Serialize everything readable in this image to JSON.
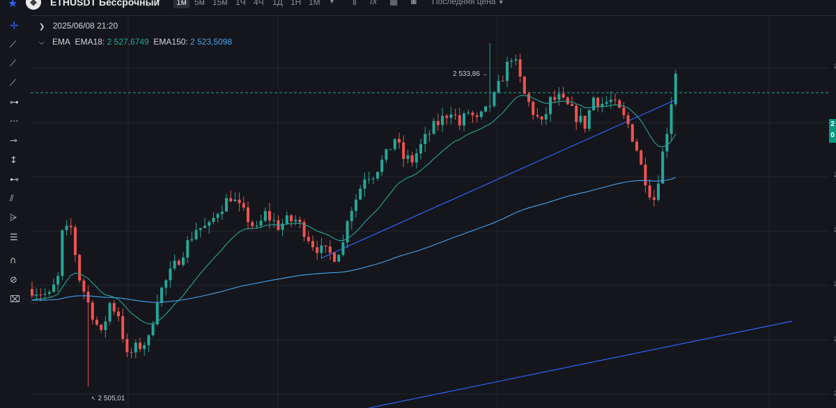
{
  "header": {
    "symbol": "ETHUSDT Бессрочный",
    "favorite_icon": "star-icon",
    "coin_icon": "ethereum-icon",
    "timeframes": [
      "1м",
      "5м",
      "15м",
      "1Ч",
      "4Ч",
      "1Д",
      "1Н",
      "1М"
    ],
    "active_timeframe": "1м",
    "price_type": "Последняя цена"
  },
  "legend": {
    "datetime": "2025/06/08 21:20",
    "indicator": "EMA",
    "ema18_label": "EMA18:",
    "ema18_value": "2 527,6749",
    "ema150_label": "EMA150:",
    "ema150_value": "2 523,5098"
  },
  "annotations": {
    "high": "2 533,86",
    "low": "2 505,01"
  },
  "price_tag": {
    "line1": "2",
    "line2": "0"
  },
  "axis_fragments": [
    "2",
    "2",
    "2",
    "2",
    "2",
    "2"
  ],
  "colors": {
    "up": "#26a69a",
    "down": "#ef5350",
    "ema18": "#26a69a",
    "ema150": "#42a5f5",
    "trendline": "#2962ff"
  },
  "chart_data": {
    "type": "candlestick",
    "ylim": [
      2503.2,
      2536.2
    ],
    "candle_count": 150,
    "anchors": [
      {
        "i": 0,
        "close": 2513.2
      },
      {
        "i": 4,
        "close": 2512.6
      },
      {
        "i": 6,
        "close": 2514.1
      },
      {
        "i": 7,
        "close": 2517.8
      },
      {
        "i": 9,
        "close": 2518.3
      },
      {
        "i": 11,
        "close": 2514.1
      },
      {
        "i": 13,
        "close": 2512.0
      },
      {
        "i": 16,
        "close": 2509.3
      },
      {
        "i": 18,
        "close": 2512.0
      },
      {
        "i": 20,
        "close": 2511.1
      },
      {
        "i": 22,
        "close": 2507.5
      },
      {
        "i": 24,
        "close": 2508.2
      },
      {
        "i": 27,
        "close": 2508.9
      },
      {
        "i": 29,
        "close": 2512.5
      },
      {
        "i": 32,
        "close": 2514.5
      },
      {
        "i": 35,
        "close": 2516.4
      },
      {
        "i": 38,
        "close": 2518.3
      },
      {
        "i": 41,
        "close": 2518.4
      },
      {
        "i": 43,
        "close": 2519.8
      },
      {
        "i": 46,
        "close": 2521.0
      },
      {
        "i": 48,
        "close": 2520.0
      },
      {
        "i": 50,
        "close": 2519.1
      },
      {
        "i": 52,
        "close": 2518.1
      },
      {
        "i": 54,
        "close": 2519.5
      },
      {
        "i": 57,
        "close": 2518.5
      },
      {
        "i": 59,
        "close": 2518.9
      },
      {
        "i": 61,
        "close": 2519.0
      },
      {
        "i": 63,
        "close": 2518.1
      },
      {
        "i": 65,
        "close": 2517.0
      },
      {
        "i": 67,
        "close": 2516.4
      },
      {
        "i": 70,
        "close": 2516.0
      },
      {
        "i": 72,
        "close": 2517.0
      },
      {
        "i": 73,
        "close": 2519.3
      },
      {
        "i": 75,
        "close": 2520.8
      },
      {
        "i": 77,
        "close": 2522.7
      },
      {
        "i": 79,
        "close": 2522.9
      },
      {
        "i": 82,
        "close": 2524.4
      },
      {
        "i": 84,
        "close": 2525.9
      },
      {
        "i": 86,
        "close": 2524.2
      },
      {
        "i": 88,
        "close": 2524.0
      },
      {
        "i": 91,
        "close": 2525.8
      },
      {
        "i": 93,
        "close": 2526.8
      },
      {
        "i": 95,
        "close": 2527.5
      },
      {
        "i": 97,
        "close": 2528.3
      },
      {
        "i": 99,
        "close": 2527.0
      },
      {
        "i": 101,
        "close": 2528.1
      },
      {
        "i": 103,
        "close": 2527.3
      },
      {
        "i": 105,
        "close": 2528.1
      },
      {
        "i": 107,
        "close": 2529.3
      },
      {
        "i": 109,
        "close": 2531.1
      },
      {
        "i": 111,
        "close": 2532.8
      },
      {
        "i": 112,
        "close": 2532.0
      },
      {
        "i": 114,
        "close": 2529.5
      },
      {
        "i": 116,
        "close": 2528.1
      },
      {
        "i": 118,
        "close": 2527.0
      },
      {
        "i": 120,
        "close": 2529.0
      },
      {
        "i": 122,
        "close": 2529.2
      },
      {
        "i": 124,
        "close": 2528.5
      },
      {
        "i": 126,
        "close": 2527.7
      },
      {
        "i": 128,
        "close": 2527.0
      },
      {
        "i": 130,
        "close": 2529.3
      },
      {
        "i": 132,
        "close": 2528.8
      },
      {
        "i": 134,
        "close": 2529.0
      },
      {
        "i": 136,
        "close": 2528.1
      },
      {
        "i": 138,
        "close": 2527.0
      },
      {
        "i": 140,
        "close": 2525.0
      },
      {
        "i": 141,
        "close": 2523.5
      },
      {
        "i": 143,
        "close": 2521.4
      },
      {
        "i": 144,
        "close": 2520.8
      },
      {
        "i": 145,
        "close": 2522.6
      },
      {
        "i": 147,
        "close": 2526.6
      },
      {
        "i": 148,
        "close": 2529.0
      },
      {
        "i": 149,
        "close": 2531.5
      },
      {
        "i": 150,
        "close": 2531.2
      },
      {
        "i": 151,
        "close": 2530.0
      },
      {
        "i": 152,
        "close": 2529.4
      }
    ],
    "high_marker": {
      "i": 106,
      "price": 2533.86
    },
    "low_marker": {
      "i": 13,
      "price": 2505.01
    },
    "last_price_line": 2529.7,
    "trendlines": [
      {
        "from": {
          "i": 67,
          "price": 2515.8
        },
        "to": {
          "i": 149,
          "price": 2529.1
        }
      },
      {
        "from": {
          "i": 78,
          "price": 2503.2
        },
        "to": {
          "i": 176,
          "price": 2510.5
        }
      }
    ]
  }
}
